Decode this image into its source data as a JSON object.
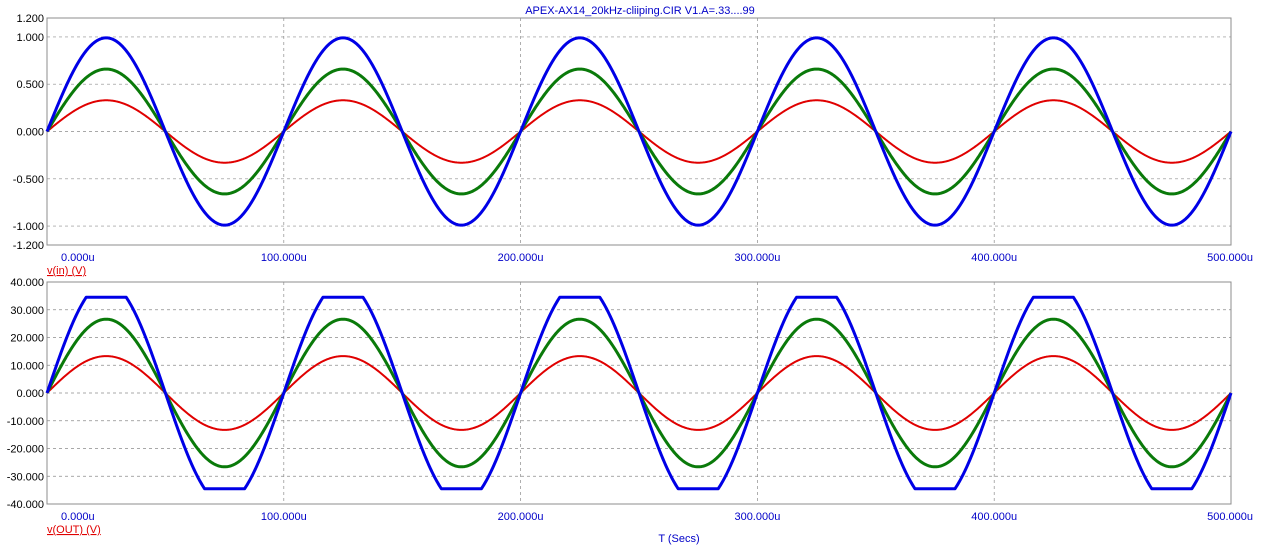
{
  "title": "APEX-AX14_20kHz-cliiping.CIR V1.A=.33....99",
  "colors": {
    "red": "#e00000",
    "green": "#0a7a0a",
    "blue": "#0000e6",
    "label_blue": "#0000c8"
  },
  "chart_data": [
    {
      "type": "line",
      "xlabel": "",
      "ylabel": "v(in) (V)",
      "xlim": [
        0,
        500
      ],
      "ylim": [
        -1.2,
        1.2
      ],
      "x_ticks": [
        0,
        100,
        200,
        300,
        400,
        500
      ],
      "x_tick_labels": [
        "0.000u",
        "100.000u",
        "200.000u",
        "300.000u",
        "400.000u",
        "500.000u"
      ],
      "y_ticks": [
        1.2,
        1.0,
        0.5,
        0.0,
        -0.5,
        -1.0,
        -1.2
      ],
      "y_tick_labels": [
        "1.200",
        "1.000",
        "0.500",
        "0.000",
        "-0.500",
        "-1.000",
        "-1.200"
      ],
      "grid": true,
      "series": [
        {
          "color": "#e00000",
          "waveform": "sine",
          "frequency_khz": 10,
          "amplitude": 0.33,
          "clip": null,
          "stroke_width": 2
        },
        {
          "color": "#0a7a0a",
          "waveform": "sine",
          "frequency_khz": 10,
          "amplitude": 0.66,
          "clip": null,
          "stroke_width": 3
        },
        {
          "color": "#0000e6",
          "waveform": "sine",
          "frequency_khz": 10,
          "amplitude": 0.99,
          "clip": null,
          "stroke_width": 3
        }
      ]
    },
    {
      "type": "line",
      "xlabel": "T (Secs)",
      "ylabel": "v(OUT) (V)",
      "xlim": [
        0,
        500
      ],
      "ylim": [
        -40,
        40
      ],
      "x_ticks": [
        0,
        100,
        200,
        300,
        400,
        500
      ],
      "x_tick_labels": [
        "0.000u",
        "100.000u",
        "200.000u",
        "300.000u",
        "400.000u",
        "500.000u"
      ],
      "y_ticks": [
        40,
        30,
        20,
        10,
        0,
        -10,
        -20,
        -30,
        -40
      ],
      "y_tick_labels": [
        "40.000",
        "30.000",
        "20.000",
        "10.000",
        "0.000",
        "-10.000",
        "-20.000",
        "-30.000",
        "-40.000"
      ],
      "grid": true,
      "series": [
        {
          "color": "#e00000",
          "waveform": "sine",
          "frequency_khz": 10,
          "amplitude": 13.3,
          "clip": null,
          "stroke_width": 2
        },
        {
          "color": "#0a7a0a",
          "waveform": "sine",
          "frequency_khz": 10,
          "amplitude": 26.6,
          "clip": null,
          "stroke_width": 3
        },
        {
          "color": "#0000e6",
          "waveform": "sine",
          "frequency_khz": 10,
          "amplitude": 40,
          "clip": 34.5,
          "stroke_width": 3
        }
      ]
    }
  ]
}
